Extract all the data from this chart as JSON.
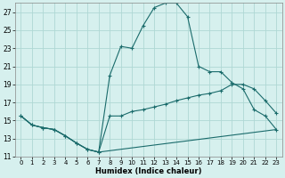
{
  "title": "",
  "xlabel": "Humidex (Indice chaleur)",
  "background_color": "#d6f0ee",
  "grid_color": "#afd8d4",
  "line_color": "#1a6b6b",
  "xlim": [
    -0.5,
    23.5
  ],
  "ylim": [
    11,
    28
  ],
  "yticks": [
    11,
    13,
    15,
    17,
    19,
    21,
    23,
    25,
    27
  ],
  "xticks": [
    0,
    1,
    2,
    3,
    4,
    5,
    6,
    7,
    8,
    9,
    10,
    11,
    12,
    13,
    14,
    15,
    16,
    17,
    18,
    19,
    20,
    21,
    22,
    23
  ],
  "line1_x": [
    0,
    1,
    2,
    3,
    4,
    5,
    6,
    7,
    8,
    9,
    10,
    11,
    12,
    13,
    14,
    15,
    16,
    17,
    18,
    19,
    20,
    21,
    22,
    23
  ],
  "line1_y": [
    15.5,
    14.5,
    14.2,
    14.0,
    13.3,
    12.5,
    11.8,
    11.5,
    20.0,
    23.2,
    23.0,
    25.5,
    27.5,
    28.0,
    28.0,
    26.5,
    21.0,
    20.4,
    20.4,
    19.2,
    18.5,
    16.2,
    15.5,
    14.0
  ],
  "line2_x": [
    0,
    1,
    2,
    3,
    4,
    5,
    6,
    7,
    8,
    9,
    10,
    11,
    12,
    13,
    14,
    15,
    16,
    17,
    18,
    19,
    20,
    21,
    22,
    23
  ],
  "line2_y": [
    15.5,
    14.5,
    14.2,
    14.0,
    13.3,
    12.5,
    11.8,
    11.5,
    15.5,
    15.5,
    16.0,
    16.2,
    16.5,
    16.8,
    17.2,
    17.5,
    17.8,
    18.0,
    18.3,
    19.0,
    19.0,
    18.5,
    17.2,
    15.8
  ],
  "line3_x": [
    0,
    1,
    2,
    3,
    4,
    5,
    6,
    7,
    23
  ],
  "line3_y": [
    15.5,
    14.5,
    14.2,
    14.0,
    13.3,
    12.5,
    11.8,
    11.5,
    14.0
  ]
}
